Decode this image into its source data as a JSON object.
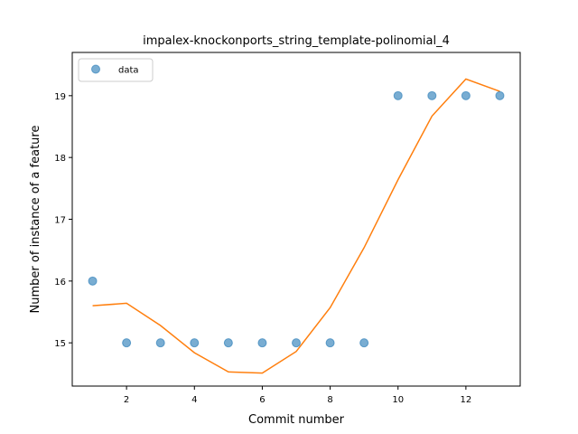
{
  "chart_data": {
    "type": "scatter",
    "title": "impalex-knockonports_string_template-polinomial_4",
    "xlabel": "Commit number",
    "ylabel": "Number of instance of a feature",
    "xlim": [
      0.4,
      13.6
    ],
    "ylim": [
      14.3,
      19.7
    ],
    "xticks": [
      2,
      4,
      6,
      8,
      10,
      12
    ],
    "yticks": [
      15,
      16,
      17,
      18,
      19
    ],
    "grid": false,
    "legend_position": "upper left",
    "series": [
      {
        "name": "data",
        "kind": "scatter",
        "color": "#1f77b4",
        "x": [
          1,
          2,
          3,
          4,
          5,
          6,
          7,
          8,
          9,
          10,
          11,
          12,
          13
        ],
        "y": [
          16,
          15,
          15,
          15,
          15,
          15,
          15,
          15,
          15,
          19,
          19,
          19,
          19
        ]
      },
      {
        "kind": "line",
        "color": "#ff7f0e",
        "x": [
          1,
          2,
          3,
          4,
          5,
          6,
          7,
          8,
          9,
          10,
          11,
          12,
          13
        ],
        "y": [
          15.6,
          15.64,
          15.28,
          14.84,
          14.53,
          14.51,
          14.86,
          15.57,
          16.54,
          17.64,
          18.67,
          19.27,
          19.07
        ]
      }
    ]
  }
}
